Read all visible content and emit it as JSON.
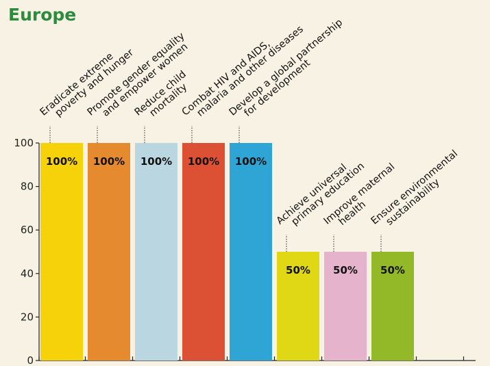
{
  "chart_data": {
    "type": "bar",
    "title": "Europe",
    "xlabel": "",
    "ylabel": "",
    "ylim": [
      0,
      100
    ],
    "yticks": [
      0,
      20,
      40,
      60,
      80,
      100
    ],
    "grid": false,
    "categories": [
      [
        "Eradicate extreme",
        "poverty and hunger"
      ],
      [
        "Promote gender equality",
        "and empower women"
      ],
      [
        "Reduce child",
        "mortality"
      ],
      [
        "Combat HIV and AIDS,",
        "malaria and other diseases"
      ],
      [
        "Develop a global partnership",
        "for development"
      ],
      [
        "Achieve universal",
        "primary education"
      ],
      [
        "Improve maternal",
        "health"
      ],
      [
        "Ensure environmental",
        "sustainability"
      ]
    ],
    "values": [
      100,
      100,
      100,
      100,
      100,
      50,
      50,
      50
    ],
    "data_labels": [
      "100%",
      "100%",
      "100%",
      "100%",
      "100%",
      "50%",
      "50%",
      "50%"
    ],
    "colors": [
      "#f6d20a",
      "#e58a2f",
      "#bad6e0",
      "#dc5033",
      "#2fa5d6",
      "#e0d814",
      "#e5b3cb",
      "#94b928"
    ],
    "background": "#f7f2e3",
    "title_color": "#2d8a3e"
  }
}
